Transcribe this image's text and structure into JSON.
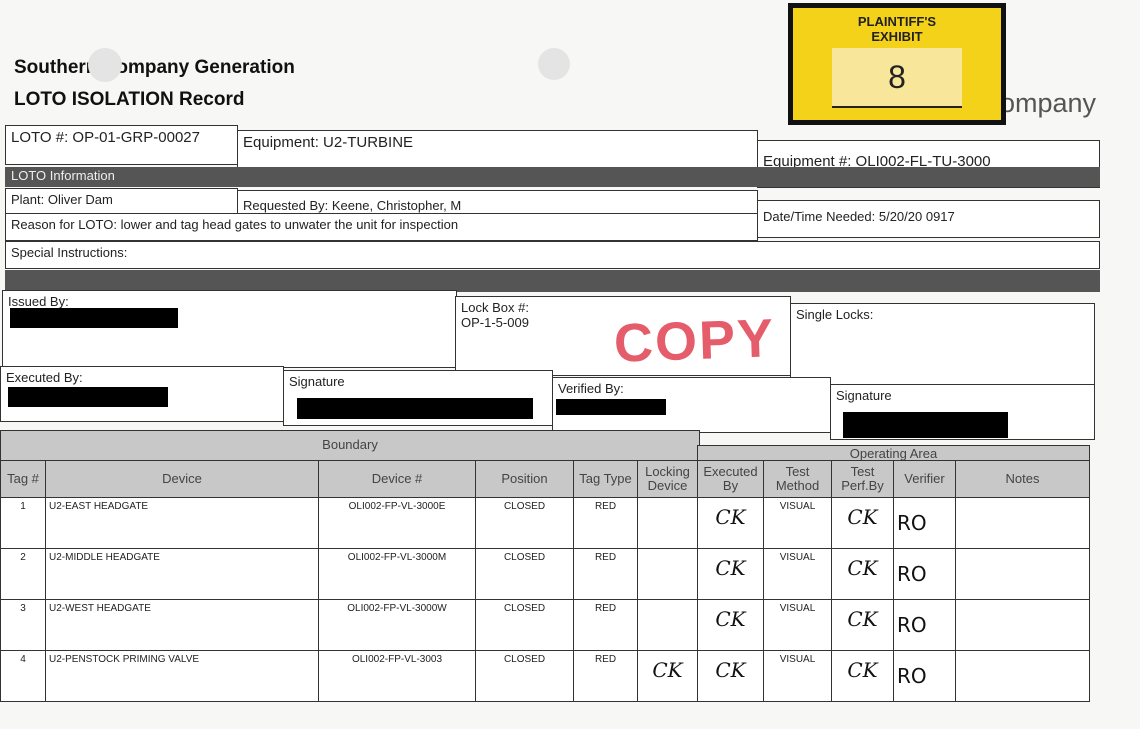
{
  "header": {
    "company": "Southern Company Generation",
    "record_title": "LOTO ISOLATION Record",
    "logo_partial": "ompany"
  },
  "exhibit": {
    "label_line1": "PLAINTIFF'S",
    "label_line2": "EXHIBIT",
    "number": "8",
    "color": "#f5d21a"
  },
  "record": {
    "loto_no": "LOTO #: OP-01-GRP-00027",
    "equipment": "Equipment: U2-TURBINE",
    "equipment_no": "Equipment #: OLI002-FL-TU-3000",
    "section_info": "LOTO Information",
    "plant": "Plant: Oliver Dam",
    "requested_by": "Requested By: Keene, Christopher, M",
    "date_needed": "Date/Time Needed: 5/20/20  0917",
    "reason": "Reason for LOTO: lower and tag head gates to unwater the unit for inspection",
    "special_instructions": "Special Instructions:",
    "issued_by": "Issued By:",
    "lock_box_label": "Lock Box #:",
    "lock_box_value": "OP-1-5-009",
    "single_locks": "Single Locks:",
    "copy_stamp": "COPY",
    "executed_by": "Executed By:",
    "signature1": "Signature",
    "verified_by": "Verified By:",
    "signature2": "Signature"
  },
  "table": {
    "group_boundary": "Boundary",
    "group_operating": "Operating Area",
    "columns": [
      "Tag #",
      "Device",
      "Device #",
      "Position",
      "Tag Type",
      "Locking Device",
      "Executed By",
      "Test Method",
      "Test Perf.By",
      "Verifier",
      "Notes"
    ],
    "rows": [
      {
        "tag": "1",
        "device": "U2-EAST HEADGATE",
        "device_no": "OLI002-FP-VL-3000E",
        "position": "CLOSED",
        "tag_type": "RED",
        "locking": "",
        "executed": "CK",
        "method": "VISUAL",
        "perf": "CK",
        "verifier": "RO",
        "notes": ""
      },
      {
        "tag": "2",
        "device": "U2-MIDDLE HEADGATE",
        "device_no": "OLI002-FP-VL-3000M",
        "position": "CLOSED",
        "tag_type": "RED",
        "locking": "",
        "executed": "CK",
        "method": "VISUAL",
        "perf": "CK",
        "verifier": "RO",
        "notes": ""
      },
      {
        "tag": "3",
        "device": "U2-WEST HEADGATE",
        "device_no": "OLI002-FP-VL-3000W",
        "position": "CLOSED",
        "tag_type": "RED",
        "locking": "",
        "executed": "CK",
        "method": "VISUAL",
        "perf": "CK",
        "verifier": "RO",
        "notes": ""
      },
      {
        "tag": "4",
        "device": "U2-PENSTOCK PRIMING VALVE",
        "device_no": "OLI002-FP-VL-3003",
        "position": "CLOSED",
        "tag_type": "RED",
        "locking": "CK",
        "executed": "CK",
        "method": "VISUAL",
        "perf": "CK",
        "verifier": "RO",
        "notes": ""
      }
    ]
  }
}
